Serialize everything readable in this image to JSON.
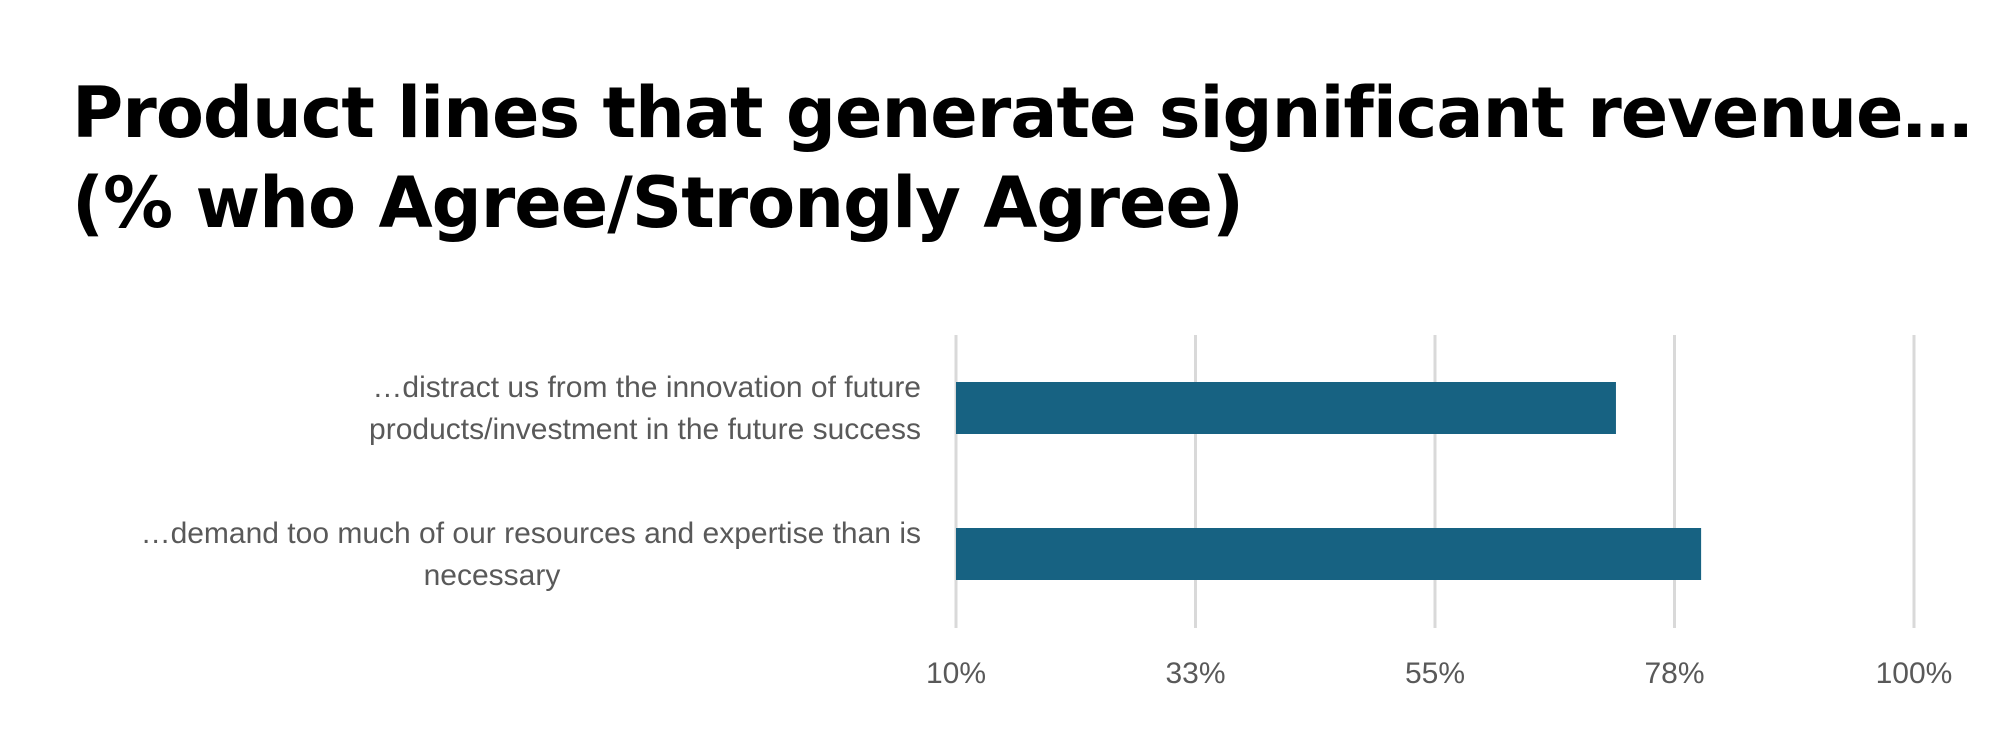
{
  "chart_data": {
    "type": "bar",
    "orientation": "horizontal",
    "title_lines": [
      "Product lines that generate significant revenue…",
      "(% who Agree/Strongly Agree)"
    ],
    "categories": [
      [
        "…distract us from the innovation of future",
        "products/investment in the future success"
      ],
      [
        "…demand too much of our resources and expertise than is",
        "necessary"
      ]
    ],
    "values": [
      72,
      80
    ],
    "xlim": [
      10,
      100
    ],
    "x_ticks": [
      10,
      32.5,
      55,
      77.5,
      100
    ],
    "x_tick_labels": [
      "10%",
      "33%",
      "55%",
      "78%",
      "100%"
    ],
    "grid": true,
    "legend": "none",
    "colors": {
      "bar": "#176282",
      "grid": "#d9d9d9",
      "label": "#595959"
    }
  }
}
